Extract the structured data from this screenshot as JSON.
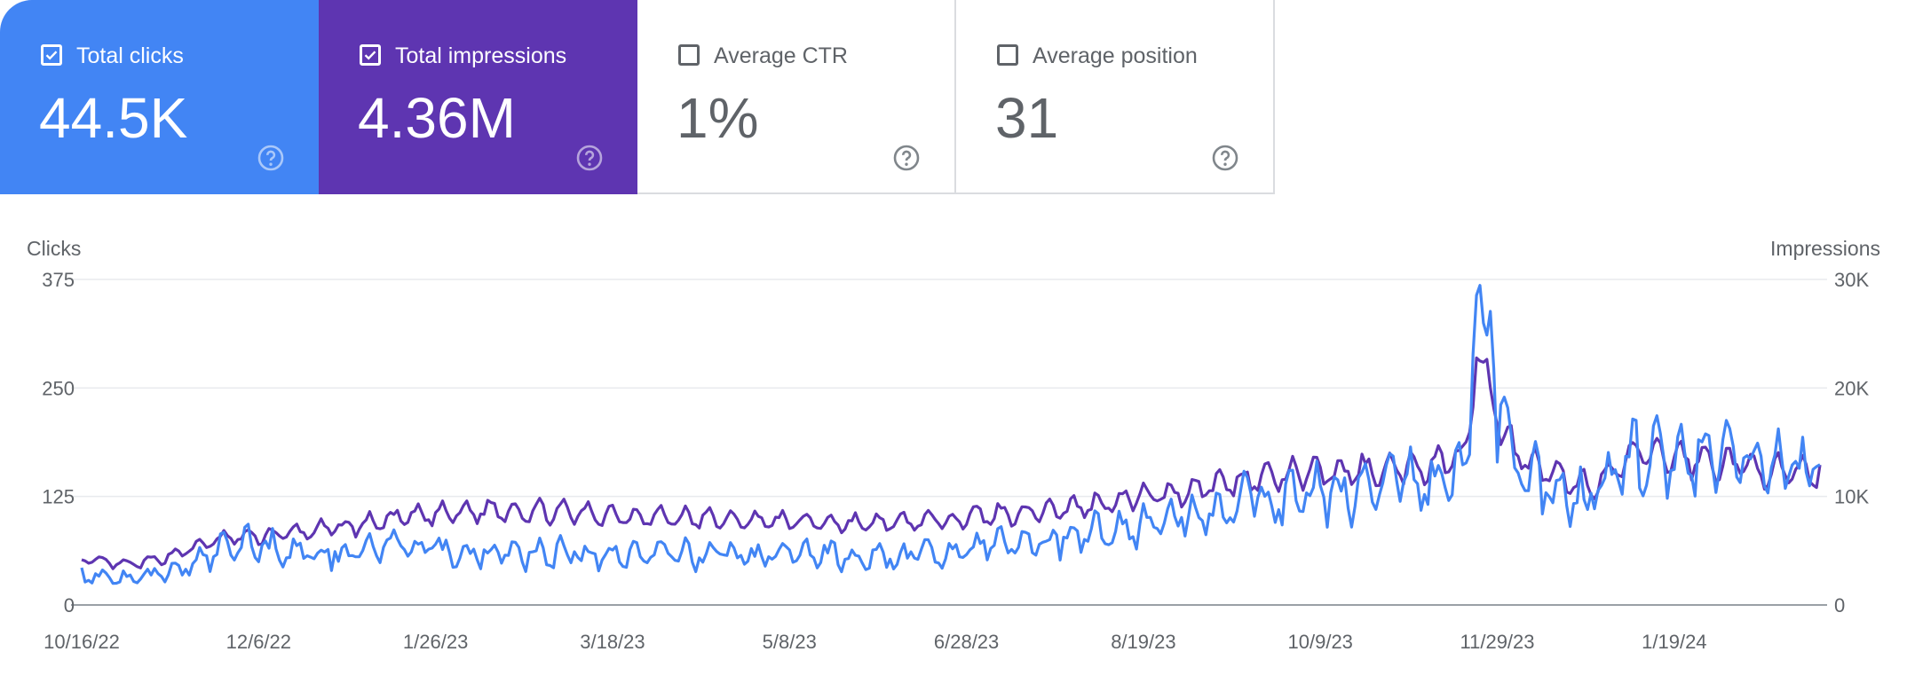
{
  "cards": [
    {
      "label": "Total clicks",
      "value": "44.5K",
      "checked": true,
      "color": "#4285f4"
    },
    {
      "label": "Total impressions",
      "value": "4.36M",
      "checked": true,
      "color": "#5e35b1"
    },
    {
      "label": "Average CTR",
      "value": "1%",
      "checked": false
    },
    {
      "label": "Average position",
      "value": "31",
      "checked": false
    }
  ],
  "chart_data": {
    "type": "line",
    "yleft_label": "Clicks",
    "yright_label": "Impressions",
    "yleft_ticks": [
      "0",
      "125",
      "250",
      "375"
    ],
    "yright_ticks": [
      "0",
      "10K",
      "20K",
      "30K"
    ],
    "yleft_range": [
      0,
      375
    ],
    "yright_range": [
      0,
      30000
    ],
    "x_ticks": [
      "10/16/22",
      "12/6/22",
      "1/26/23",
      "3/18/23",
      "5/8/23",
      "6/28/23",
      "8/19/23",
      "10/9/23",
      "11/29/23",
      "1/19/24"
    ],
    "x_start": "2022-10-16",
    "x_end": "2024-02-29",
    "grid": true,
    "series": [
      {
        "name": "Total clicks",
        "axis": "left",
        "color": "#4285f4",
        "weekly_anchors": [
          [
            "2022-10-16",
            35
          ],
          [
            "2022-10-23",
            33
          ],
          [
            "2022-10-30",
            30
          ],
          [
            "2022-11-06",
            35
          ],
          [
            "2022-11-13",
            40
          ],
          [
            "2022-11-20",
            52
          ],
          [
            "2022-11-27",
            68
          ],
          [
            "2022-12-04",
            72
          ],
          [
            "2022-12-11",
            66
          ],
          [
            "2022-12-18",
            60
          ],
          [
            "2022-12-25",
            58
          ],
          [
            "2023-01-01",
            62
          ],
          [
            "2023-01-08",
            66
          ],
          [
            "2023-01-15",
            68
          ],
          [
            "2023-01-22",
            65
          ],
          [
            "2023-01-29",
            62
          ],
          [
            "2023-02-05",
            60
          ],
          [
            "2023-02-12",
            60
          ],
          [
            "2023-02-19",
            58
          ],
          [
            "2023-02-26",
            60
          ],
          [
            "2023-03-05",
            62
          ],
          [
            "2023-03-12",
            60
          ],
          [
            "2023-03-19",
            58
          ],
          [
            "2023-03-26",
            60
          ],
          [
            "2023-04-02",
            56
          ],
          [
            "2023-04-09",
            58
          ],
          [
            "2023-04-16",
            60
          ],
          [
            "2023-04-23",
            58
          ],
          [
            "2023-04-30",
            56
          ],
          [
            "2023-05-07",
            58
          ],
          [
            "2023-05-14",
            60
          ],
          [
            "2023-05-21",
            58
          ],
          [
            "2023-05-28",
            56
          ],
          [
            "2023-06-04",
            54
          ],
          [
            "2023-06-11",
            56
          ],
          [
            "2023-06-18",
            58
          ],
          [
            "2023-06-25",
            62
          ],
          [
            "2023-07-02",
            68
          ],
          [
            "2023-07-09",
            70
          ],
          [
            "2023-07-16",
            72
          ],
          [
            "2023-07-23",
            74
          ],
          [
            "2023-07-30",
            80
          ],
          [
            "2023-08-06",
            85
          ],
          [
            "2023-08-13",
            88
          ],
          [
            "2023-08-20",
            95
          ],
          [
            "2023-08-27",
            100
          ],
          [
            "2023-09-03",
            108
          ],
          [
            "2023-09-10",
            112
          ],
          [
            "2023-09-17",
            118
          ],
          [
            "2023-09-24",
            122
          ],
          [
            "2023-10-01",
            125
          ],
          [
            "2023-10-08",
            128
          ],
          [
            "2023-10-15",
            130
          ],
          [
            "2023-10-22",
            132
          ],
          [
            "2023-10-29",
            138
          ],
          [
            "2023-11-05",
            142
          ],
          [
            "2023-11-12",
            150
          ],
          [
            "2023-11-19",
            160
          ],
          [
            "2023-11-22",
            370
          ],
          [
            "2023-11-26",
            280
          ],
          [
            "2023-12-03",
            150
          ],
          [
            "2023-12-10",
            140
          ],
          [
            "2023-12-17",
            130
          ],
          [
            "2023-12-24",
            120
          ],
          [
            "2023-12-31",
            140
          ],
          [
            "2024-01-07",
            180
          ],
          [
            "2024-01-14",
            170
          ],
          [
            "2024-01-21",
            160
          ],
          [
            "2024-01-28",
            165
          ],
          [
            "2024-02-04",
            170
          ],
          [
            "2024-02-11",
            160
          ],
          [
            "2024-02-18",
            155
          ],
          [
            "2024-02-25",
            160
          ],
          [
            "2024-02-29",
            180
          ]
        ]
      },
      {
        "name": "Total impressions",
        "axis": "right",
        "color": "#5e35b1",
        "weekly_anchors": [
          [
            "2022-10-16",
            4200
          ],
          [
            "2022-10-23",
            3900
          ],
          [
            "2022-10-30",
            3700
          ],
          [
            "2022-11-06",
            4100
          ],
          [
            "2022-11-13",
            4800
          ],
          [
            "2022-11-20",
            5600
          ],
          [
            "2022-11-27",
            6200
          ],
          [
            "2022-12-04",
            6300
          ],
          [
            "2022-12-11",
            6500
          ],
          [
            "2022-12-18",
            6700
          ],
          [
            "2022-12-25",
            7000
          ],
          [
            "2023-01-01",
            7200
          ],
          [
            "2023-01-08",
            7600
          ],
          [
            "2023-01-15",
            8000
          ],
          [
            "2023-01-22",
            8200
          ],
          [
            "2023-01-29",
            8400
          ],
          [
            "2023-02-05",
            8600
          ],
          [
            "2023-02-12",
            8800
          ],
          [
            "2023-02-19",
            8700
          ],
          [
            "2023-02-26",
            8600
          ],
          [
            "2023-03-05",
            8500
          ],
          [
            "2023-03-12",
            8400
          ],
          [
            "2023-03-19",
            8300
          ],
          [
            "2023-03-26",
            8200
          ],
          [
            "2023-04-02",
            8100
          ],
          [
            "2023-04-09",
            8000
          ],
          [
            "2023-04-16",
            7900
          ],
          [
            "2023-04-23",
            7800
          ],
          [
            "2023-04-30",
            7800
          ],
          [
            "2023-05-07",
            7700
          ],
          [
            "2023-05-14",
            7700
          ],
          [
            "2023-05-21",
            7600
          ],
          [
            "2023-05-28",
            7500
          ],
          [
            "2023-06-04",
            7500
          ],
          [
            "2023-06-11",
            7600
          ],
          [
            "2023-06-18",
            7800
          ],
          [
            "2023-06-25",
            8000
          ],
          [
            "2023-07-02",
            8200
          ],
          [
            "2023-07-09",
            8400
          ],
          [
            "2023-07-16",
            8600
          ],
          [
            "2023-07-23",
            8800
          ],
          [
            "2023-07-30",
            9000
          ],
          [
            "2023-08-06",
            9400
          ],
          [
            "2023-08-13",
            9800
          ],
          [
            "2023-08-20",
            10100
          ],
          [
            "2023-08-27",
            10300
          ],
          [
            "2023-09-03",
            10800
          ],
          [
            "2023-09-10",
            11200
          ],
          [
            "2023-09-17",
            11600
          ],
          [
            "2023-09-24",
            11800
          ],
          [
            "2023-10-01",
            12000
          ],
          [
            "2023-10-08",
            12200
          ],
          [
            "2023-10-15",
            12300
          ],
          [
            "2023-10-22",
            12400
          ],
          [
            "2023-10-29",
            12600
          ],
          [
            "2023-11-05",
            12800
          ],
          [
            "2023-11-12",
            13200
          ],
          [
            "2023-11-19",
            14000
          ],
          [
            "2023-11-22",
            24500
          ],
          [
            "2023-11-26",
            19000
          ],
          [
            "2023-12-03",
            14000
          ],
          [
            "2023-12-10",
            12500
          ],
          [
            "2023-12-17",
            11500
          ],
          [
            "2023-12-24",
            11000
          ],
          [
            "2023-12-31",
            12000
          ],
          [
            "2024-01-07",
            14000
          ],
          [
            "2024-01-14",
            13800
          ],
          [
            "2024-01-21",
            13500
          ],
          [
            "2024-01-28",
            13200
          ],
          [
            "2024-02-04",
            13000
          ],
          [
            "2024-02-11",
            12600
          ],
          [
            "2024-02-18",
            12200
          ],
          [
            "2024-02-25",
            12000
          ],
          [
            "2024-02-29",
            12500
          ]
        ]
      }
    ]
  }
}
